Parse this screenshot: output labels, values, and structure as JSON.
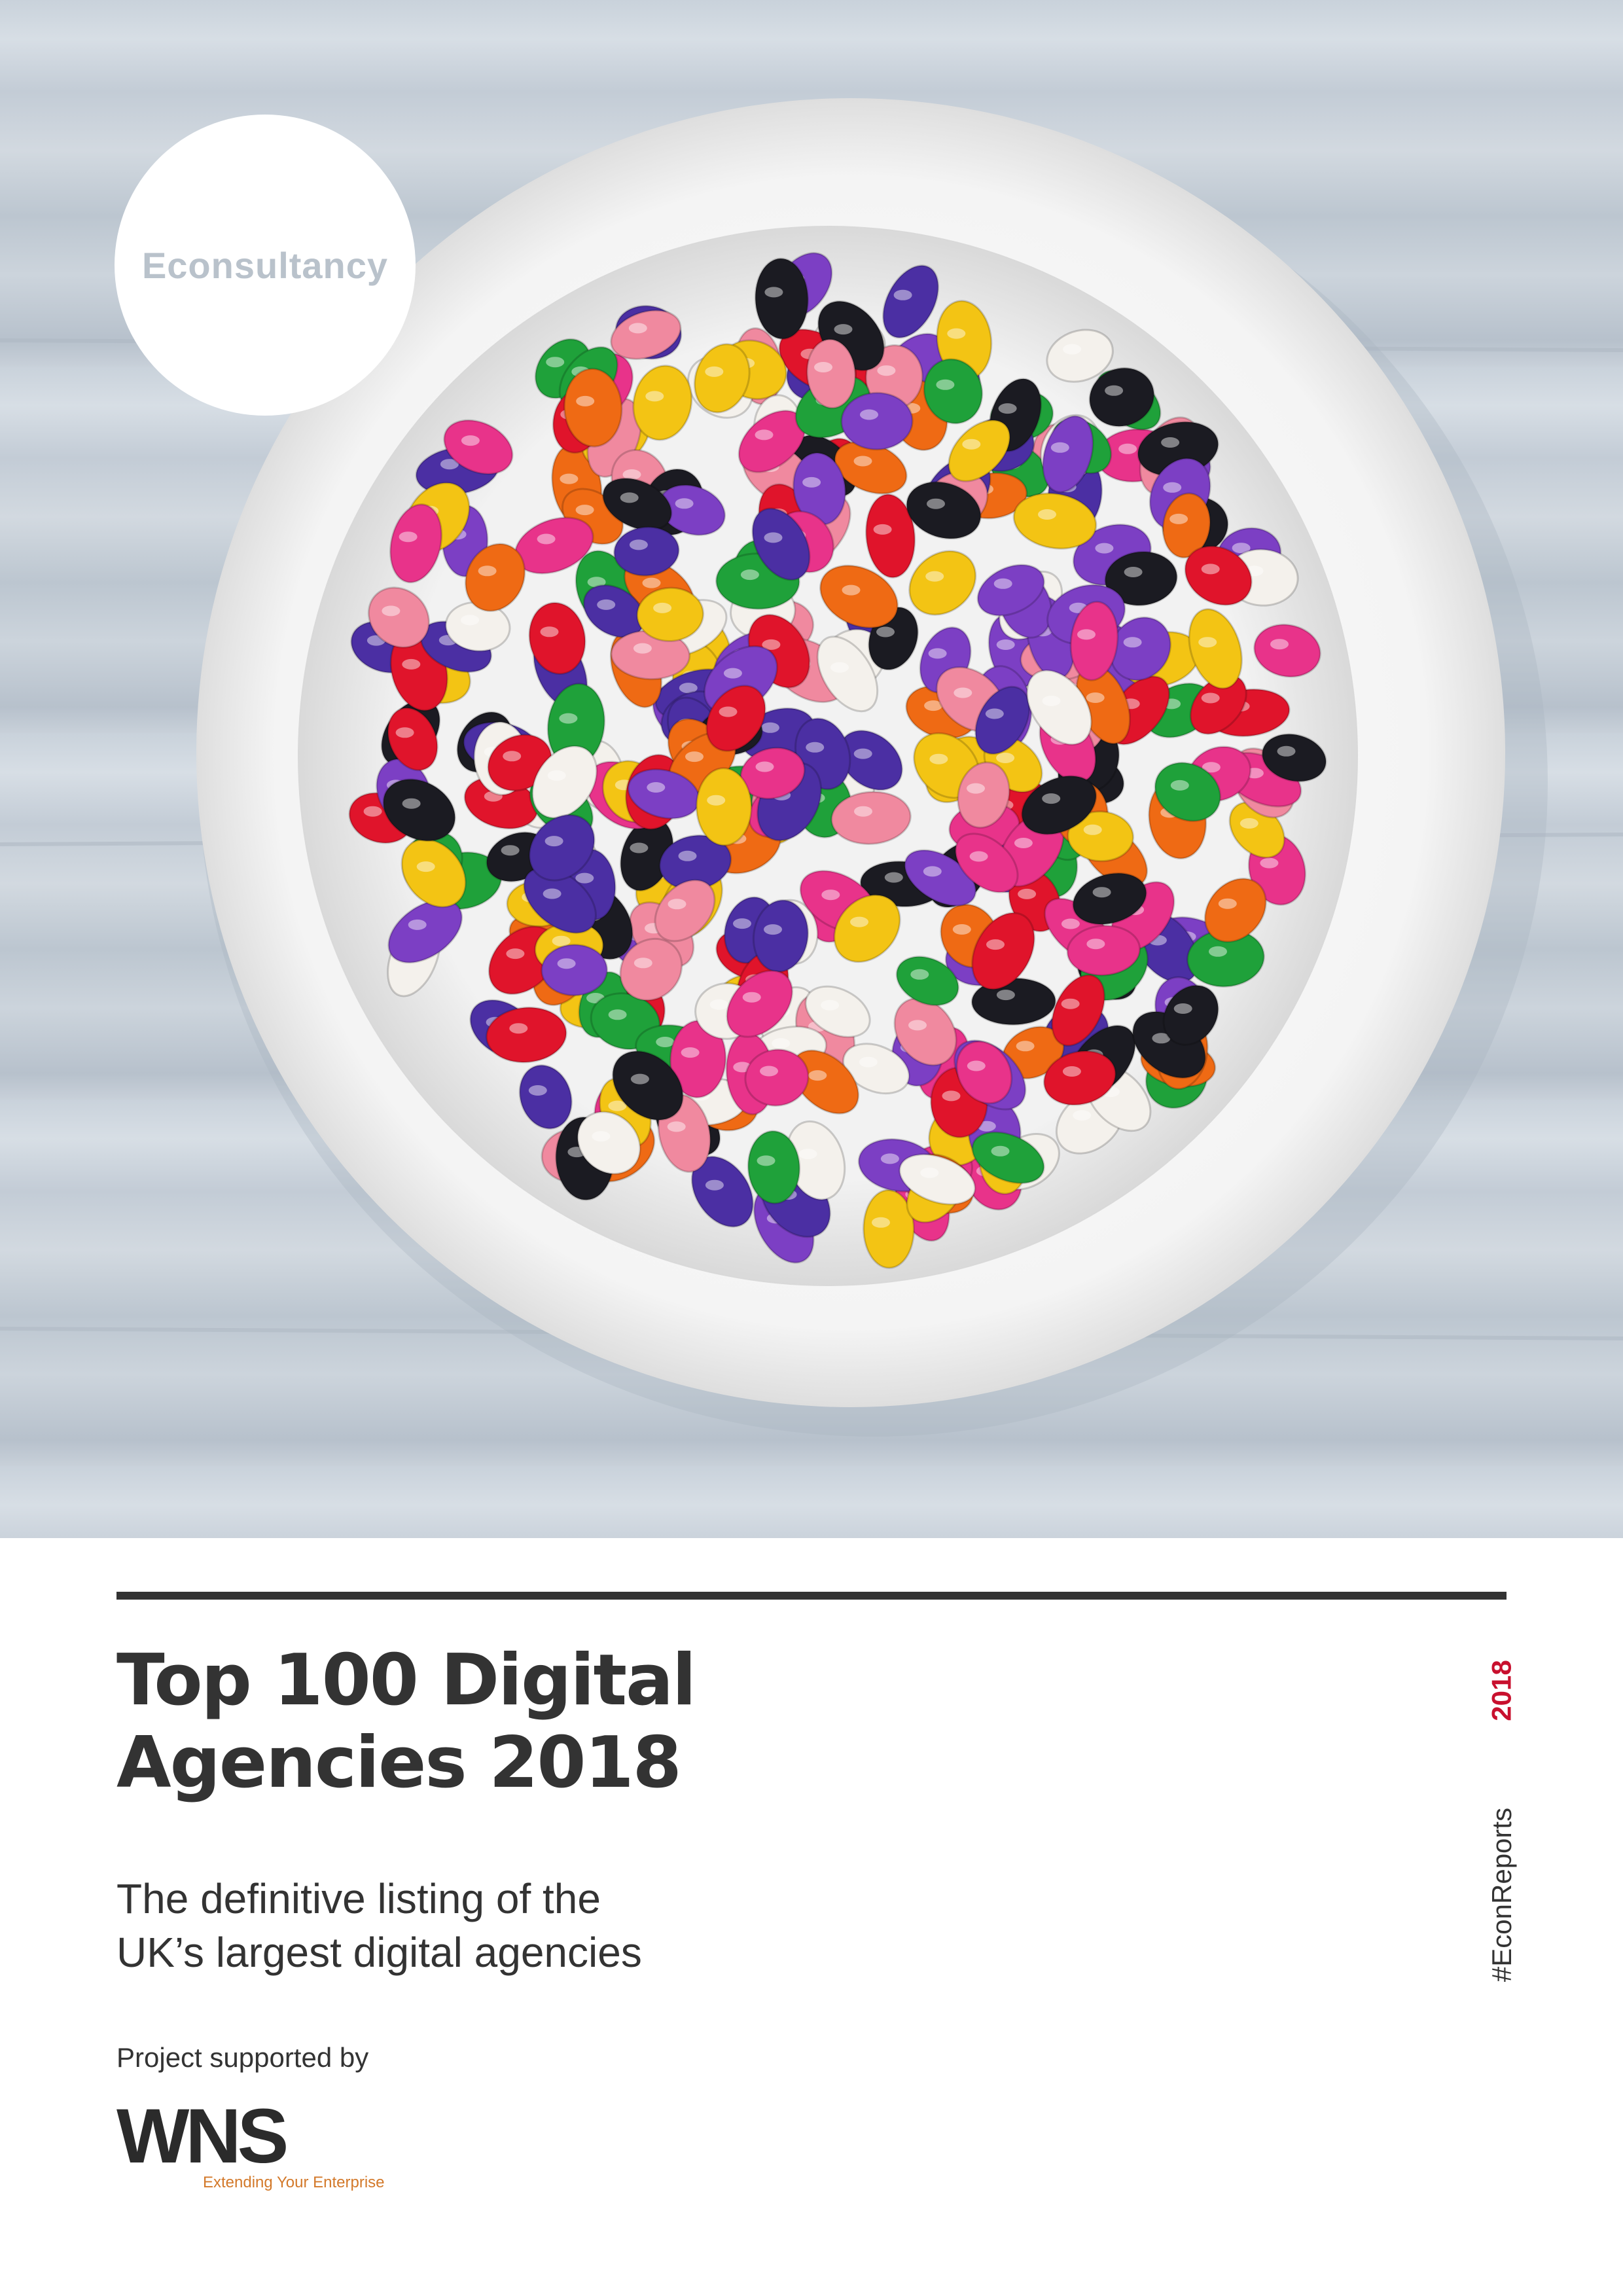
{
  "brand": {
    "publisher": "Econsultancy",
    "partner_name": "WNS",
    "partner_tagline": "Extending Your Enterprise"
  },
  "cover": {
    "title_lines": [
      "Top 100 Digital",
      "Agencies 2018"
    ],
    "subtitle_lines": [
      "The definitive listing of the",
      "UK’s largest digital agencies"
    ],
    "supported_by": "Project supported by",
    "side_year": "2018",
    "side_hashtag": "#EconReports"
  },
  "colors": {
    "text": "#333333",
    "accent_red": "#c8102e",
    "partner_orange": "#d3792a",
    "table_background": "#c9d2db"
  },
  "image": {
    "subject": "bowl-of-jelly-beans"
  }
}
